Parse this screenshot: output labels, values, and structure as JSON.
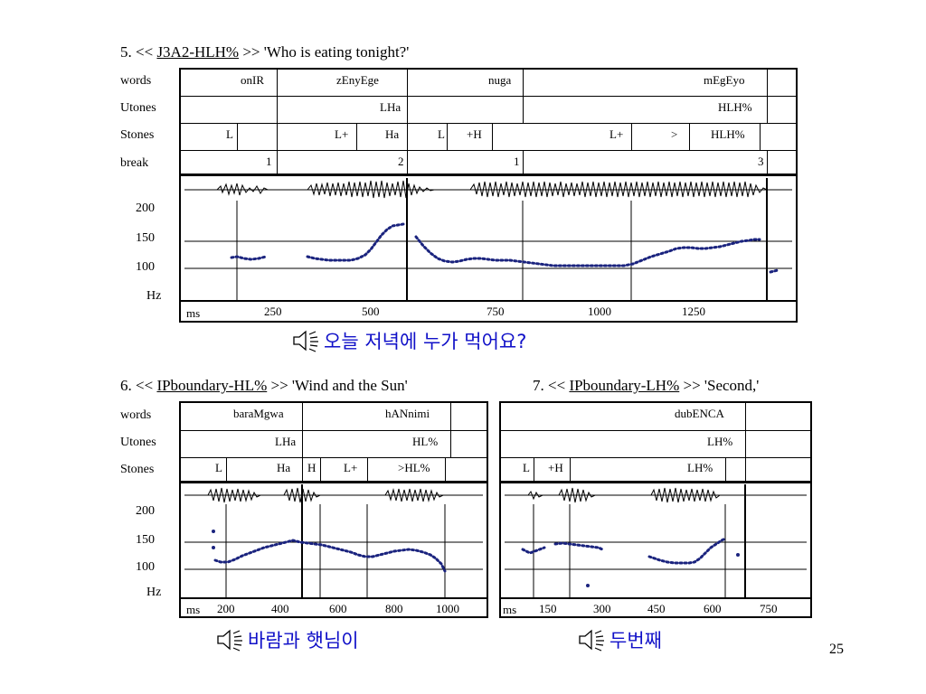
{
  "page_number": "25",
  "colors": {
    "f0_points": "#1a237e",
    "audio_text": "#1010c8"
  },
  "figures": [
    {
      "id": "fig5",
      "title_prefix": "5. << ",
      "title_underlined": "J3A2-HLH%",
      "title_suffix": " >> 'Who is eating tonight?'",
      "row_labels": {
        "words": "words",
        "utones": "Utones",
        "stones": "Stones",
        "break": "break",
        "hz": "Hz"
      },
      "words": [
        "onIR",
        "zEnyEge",
        "nuga",
        "mEgEyo"
      ],
      "utones": [
        "LHa",
        "HLH%"
      ],
      "stones": [
        "L",
        "L+",
        "Ha",
        "L",
        "+H",
        "L+",
        ">",
        "HLH%"
      ],
      "breaks": [
        "1",
        "2",
        "1",
        "3"
      ],
      "y_ticks": [
        "200",
        "150",
        "100"
      ],
      "x_unit": "ms",
      "x_ticks": [
        "250",
        "500",
        "750",
        "1000",
        "1250"
      ],
      "audio_label": "오늘 저녁에 누가 먹어요?",
      "audio_icon": "speaker-icon"
    },
    {
      "id": "fig6",
      "title_prefix": "6. << ",
      "title_underlined": "IPboundary-HL%",
      "title_suffix": " >> 'Wind and the Sun'",
      "row_labels": {
        "words": "words",
        "utones": "Utones",
        "stones": "Stones",
        "hz": "Hz"
      },
      "words": [
        "baraMgwa",
        "hANnimi"
      ],
      "utones": [
        "LHa",
        "HL%"
      ],
      "stones": [
        "L",
        "Ha",
        "H",
        "L+",
        ">HL%"
      ],
      "y_ticks": [
        "200",
        "150",
        "100"
      ],
      "x_unit": "ms",
      "x_ticks": [
        "200",
        "400",
        "600",
        "800",
        "1000"
      ],
      "audio_label": "바람과 햇님이",
      "audio_icon": "speaker-icon"
    },
    {
      "id": "fig7",
      "title_prefix": "7. << ",
      "title_underlined": "IPboundary-LH%",
      "title_suffix": " >> 'Second,'",
      "words": [
        "dubENCA"
      ],
      "utones": [
        "LH%"
      ],
      "stones": [
        "L",
        "+H",
        "LH%"
      ],
      "x_unit": "ms",
      "x_ticks": [
        "150",
        "300",
        "450",
        "600",
        "750"
      ],
      "audio_label": "두번째",
      "audio_icon": "speaker-icon"
    }
  ]
}
